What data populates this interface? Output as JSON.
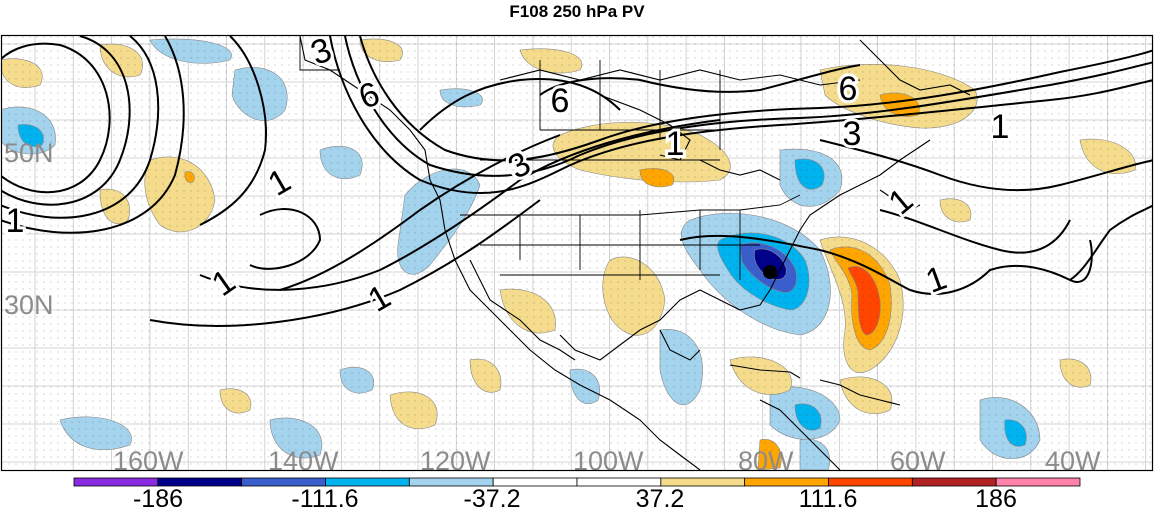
{
  "title": "F108 250 hPa PV",
  "map": {
    "lat_labels": [
      "50N",
      "30N"
    ],
    "lon_labels": [
      "160W",
      "140W",
      "120W",
      "100W",
      "80W",
      "60W",
      "40W"
    ],
    "contour_labels": [
      "3",
      "6",
      "6",
      "3",
      "1",
      "6",
      "3",
      "1",
      "1",
      "1",
      "1",
      "1",
      "1",
      "1"
    ],
    "marker": "filled-black-dot",
    "colors": {
      "land_outline": "#000000",
      "grid": "#bfbfbf",
      "label_gray": "#8c8c8c"
    }
  },
  "colorbar": {
    "tick_labels": [
      "-186",
      "-111.6",
      "-37.2",
      "37.2",
      "111.6",
      "186"
    ],
    "colors": [
      "#8a2be2",
      "#00008b",
      "#3a5fcd",
      "#00b2ee",
      "#a4d3ee",
      "#ffffff",
      "#ffffff",
      "#f5dc8c",
      "#ffa500",
      "#ff4500",
      "#b22222",
      "#ff82ab"
    ]
  }
}
